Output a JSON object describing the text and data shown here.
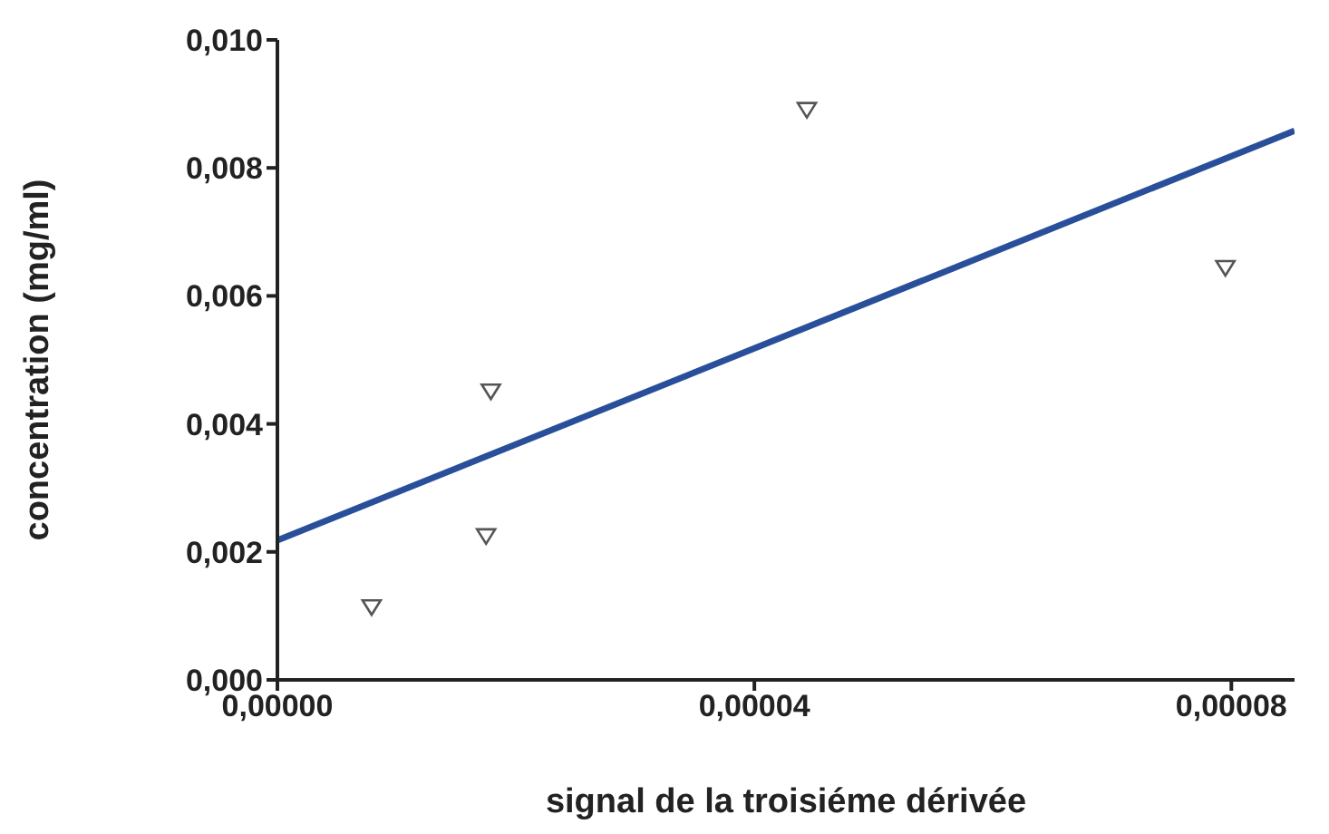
{
  "chart_data": {
    "type": "scatter",
    "xlabel": "signal de la troisiéme dérivée",
    "ylabel": "concentration (mg/ml)",
    "xlim": [
      0,
      8.53e-05
    ],
    "ylim": [
      0,
      0.01
    ],
    "xticks": [
      {
        "value": 0,
        "label": "0,00000"
      },
      {
        "value": 4e-05,
        "label": "0,00004"
      },
      {
        "value": 8e-05,
        "label": "0,00008"
      }
    ],
    "yticks": [
      {
        "value": 0,
        "label": "0,000"
      },
      {
        "value": 0.002,
        "label": "0,002"
      },
      {
        "value": 0.004,
        "label": "0,004"
      },
      {
        "value": 0.006,
        "label": "0,006"
      },
      {
        "value": 0.008,
        "label": "0,008"
      },
      {
        "value": 0.01,
        "label": "0,010"
      }
    ],
    "grid": false,
    "legend": false,
    "marker": "triangle",
    "series": [
      {
        "color": "#555555",
        "x": [
          7.9e-06,
          1.75e-05,
          1.79e-05,
          4.44e-05,
          7.95e-05
        ],
        "values": [
          0.00113,
          0.00224,
          0.0045,
          0.0089,
          0.00643
        ]
      },
      {
        "type": "line",
        "color": "#2a4f9a",
        "marker": "none",
        "line_style": "solid",
        "x": [
          0,
          8.53e-05
        ],
        "values": [
          0.00218,
          0.00858
        ]
      }
    ]
  }
}
